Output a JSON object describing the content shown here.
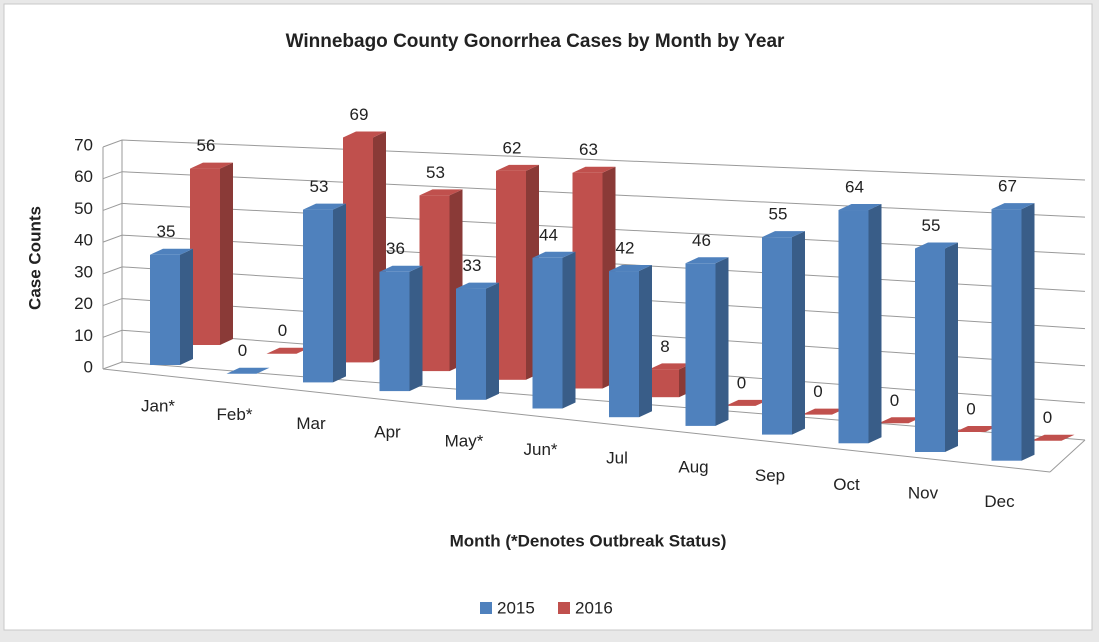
{
  "chart_data": {
    "type": "bar3d",
    "title": "Winnebago County Gonorrhea Cases by Month by Year",
    "y_label": "Case Counts",
    "x_label": "Month (*Denotes Outbreak Status)",
    "categories": [
      "Jan*",
      "Feb*",
      "Mar",
      "Apr",
      "May*",
      "Jun*",
      "Jul",
      "Aug",
      "Sep",
      "Oct",
      "Nov",
      "Dec"
    ],
    "series": [
      {
        "name": "2015",
        "color": "#4f81bd",
        "values": [
          35,
          0,
          53,
          36,
          33,
          44,
          42,
          46,
          55,
          64,
          55,
          67
        ]
      },
      {
        "name": "2016",
        "color": "#c0504d",
        "values": [
          56,
          0,
          69,
          53,
          62,
          63,
          8,
          0,
          0,
          0,
          0,
          0
        ]
      }
    ],
    "ylim": [
      0,
      70
    ],
    "yticks": [
      0,
      10,
      20,
      30,
      40,
      50,
      60,
      70
    ],
    "grid": true,
    "legend": "bottom"
  }
}
